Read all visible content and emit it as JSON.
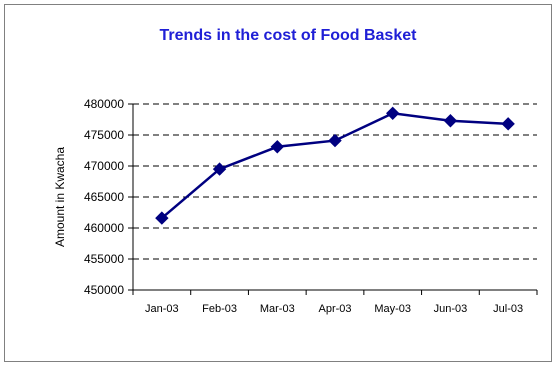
{
  "chart_data": {
    "type": "line",
    "title": "Trends in the cost of Food Basket",
    "xlabel": "",
    "ylabel": "Amount in Kwacha",
    "categories": [
      "Jan-03",
      "Feb-03",
      "Mar-03",
      "Apr-03",
      "May-03",
      "Jun-03",
      "Jul-03"
    ],
    "values": [
      461600,
      469500,
      473100,
      474100,
      478500,
      477300,
      476800
    ],
    "ylim": [
      450000,
      480000
    ],
    "yticks": [
      480000,
      475000,
      470000,
      465000,
      460000,
      455000,
      450000
    ],
    "grid": "horizontal dashed",
    "legend": "none",
    "colors": {
      "line": "#000080",
      "marker": "#000080",
      "title": "#1f1fd6",
      "grid": "#000000"
    }
  }
}
